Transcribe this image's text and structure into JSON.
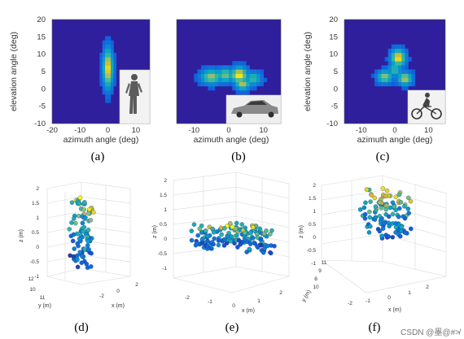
{
  "watermark": "CSDN @墨@#≯",
  "chart_data": [
    {
      "type": "heatmap",
      "panel": "(a)",
      "xlabel": "azimuth angle (deg)",
      "ylabel": "elevation angle (deg)",
      "xlim": [
        -20,
        15
      ],
      "ylim": [
        -10,
        20
      ],
      "xticks": [
        "-20",
        "-10",
        "0",
        "10"
      ],
      "yticks": [
        "-10",
        "-5",
        "0",
        "5",
        "10",
        "15",
        "20"
      ],
      "background": "#2f1f9c",
      "inset": "pedestrian",
      "blobs": [
        {
          "x": 0,
          "y": 6.0,
          "sx": 1.3,
          "sy": 4.3,
          "a": 0.95
        }
      ]
    },
    {
      "type": "heatmap",
      "panel": "(b)",
      "xlabel": "azimuth angle (deg)",
      "ylabel": "",
      "xlim": [
        -15,
        15
      ],
      "ylim": [
        -10,
        20
      ],
      "xticks": [
        "-10",
        "0",
        "10"
      ],
      "yticks": [],
      "background": "#2f1f9c",
      "inset": "car",
      "blobs": [
        {
          "x": -5,
          "y": 3.5,
          "sx": 2.3,
          "sy": 1.6,
          "a": 0.75
        },
        {
          "x": -1,
          "y": 4.0,
          "sx": 1.8,
          "sy": 1.6,
          "a": 0.7
        },
        {
          "x": 3,
          "y": 4.0,
          "sx": 1.8,
          "sy": 1.7,
          "a": 0.95
        },
        {
          "x": 4,
          "y": 1.5,
          "sx": 1.6,
          "sy": 1.3,
          "a": 0.8
        },
        {
          "x": 7,
          "y": 3.0,
          "sx": 1.8,
          "sy": 1.5,
          "a": 0.6
        }
      ]
    },
    {
      "type": "heatmap",
      "panel": "(c)",
      "xlabel": "azimuth angle (deg)",
      "ylabel": "elevation angle (deg)",
      "xlim": [
        -15,
        15
      ],
      "ylim": [
        -10,
        20
      ],
      "xticks": [
        "-10",
        "0",
        "10"
      ],
      "yticks": [
        "-10",
        "-5",
        "0",
        "5",
        "10",
        "15",
        "20"
      ],
      "background": "#2f1f9c",
      "inset": "cyclist",
      "blobs": [
        {
          "x": 1,
          "y": 9.0,
          "sx": 1.6,
          "sy": 1.8,
          "a": 0.95
        },
        {
          "x": -3,
          "y": 3.5,
          "sx": 1.7,
          "sy": 1.4,
          "a": 0.75
        },
        {
          "x": 3,
          "y": 3.0,
          "sx": 1.6,
          "sy": 1.4,
          "a": 0.8
        },
        {
          "x": 0,
          "y": 5.5,
          "sx": 1.5,
          "sy": 1.5,
          "a": 0.6
        }
      ]
    },
    {
      "type": "scatter",
      "panel": "(d)",
      "xlabel": "x (m)",
      "ylabel": "y (m)",
      "zlabel": "z (m)",
      "zticks": [
        "-1",
        "-0.5",
        "0",
        "0.5",
        "1",
        "1.5",
        "2"
      ],
      "yticks": [
        "10",
        "11",
        "12"
      ],
      "xticks": [
        "-2",
        "0",
        "2"
      ],
      "clusters": [
        {
          "cx": 0,
          "cz": 0.75,
          "wx": 0.35,
          "wz": 1.15,
          "n": 90
        }
      ]
    },
    {
      "type": "scatter",
      "panel": "(e)",
      "xlabel": "x (m)",
      "ylabel": "",
      "zlabel": "z (m)",
      "zticks": [
        "-1",
        "-0.5",
        "0",
        "0.5",
        "1",
        "1.5",
        "2"
      ],
      "yticks": [],
      "xticks": [
        "-2",
        "-1",
        "0",
        "1",
        "2"
      ],
      "clusters": [
        {
          "cx": 0,
          "cz": 0.25,
          "wx": 2.0,
          "wz": 0.45,
          "n": 150
        }
      ]
    },
    {
      "type": "scatter",
      "panel": "(f)",
      "xlabel": "x (m)",
      "ylabel": "y (m)",
      "zlabel": "z (m)",
      "zticks": [
        "-1",
        "-0.5",
        "0",
        "0.5",
        "1",
        "1.5",
        "2"
      ],
      "yticks": [
        "8",
        "9",
        "10",
        "11"
      ],
      "xticks": [
        "-2",
        "-1",
        "0",
        "1",
        "2"
      ],
      "clusters": [
        {
          "cx": 0.2,
          "cz": 0.6,
          "wx": 1.0,
          "wz": 0.65,
          "n": 110
        }
      ]
    }
  ]
}
